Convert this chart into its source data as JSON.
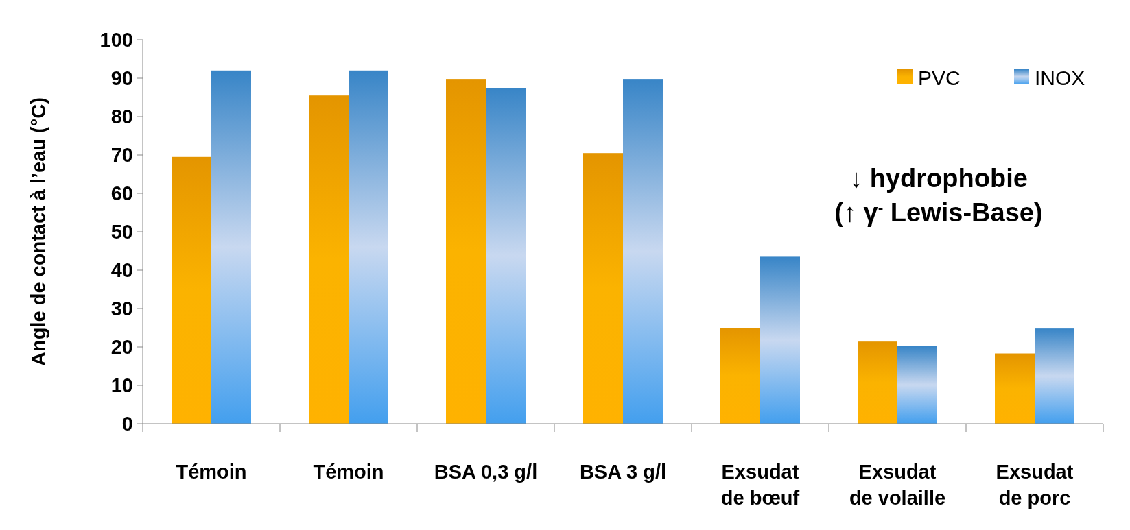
{
  "chart_data": {
    "type": "bar",
    "ylabel": "Angle de contact à l’eau (°C)",
    "categories": [
      "Témoin",
      "Témoin",
      "BSA 0,3 g/l",
      "BSA 3 g/l",
      "Exsudat de bœuf",
      "Exsudat de volaille",
      "Exsudat de porc"
    ],
    "series": [
      {
        "name": "PVC",
        "color": "#f5a000",
        "values": [
          69.5,
          85.5,
          89.8,
          70.5,
          25,
          21.4,
          18.3
        ]
      },
      {
        "name": "INOX",
        "color": "#3c8fd6",
        "values": [
          92,
          92,
          87.5,
          89.8,
          43.5,
          20.2,
          24.8
        ]
      }
    ],
    "ylim": [
      0,
      100
    ],
    "yticks": [
      0,
      10,
      20,
      30,
      40,
      50,
      60,
      70,
      80,
      90,
      100
    ],
    "annotations": [
      "↓ hydrophobie",
      "(↑ γ$^{-}$ Lewis-Base)"
    ],
    "legend": "top right",
    "grid": false
  }
}
